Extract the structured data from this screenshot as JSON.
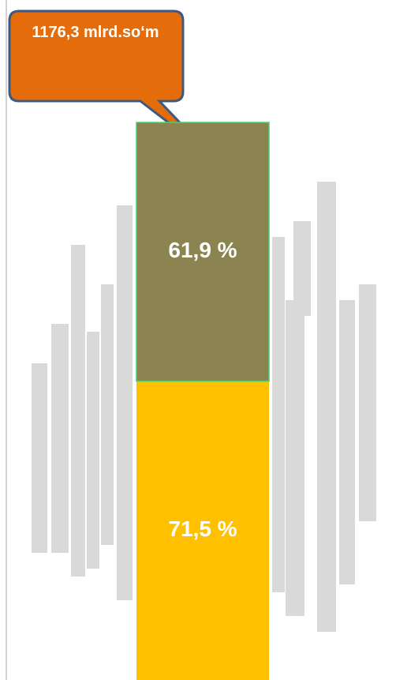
{
  "chart_data": {
    "type": "stacked-bar",
    "annotation": "1176,3 mlrd.so‘m",
    "categories": [
      null
    ],
    "series": [
      {
        "color": "#ffc000",
        "values": [
          71.5
        ],
        "value_labels": [
          "71,5 %"
        ]
      },
      {
        "color": "#8b8350",
        "values": [
          61.9
        ],
        "value_labels": [
          "61,9 %"
        ]
      }
    ]
  }
}
